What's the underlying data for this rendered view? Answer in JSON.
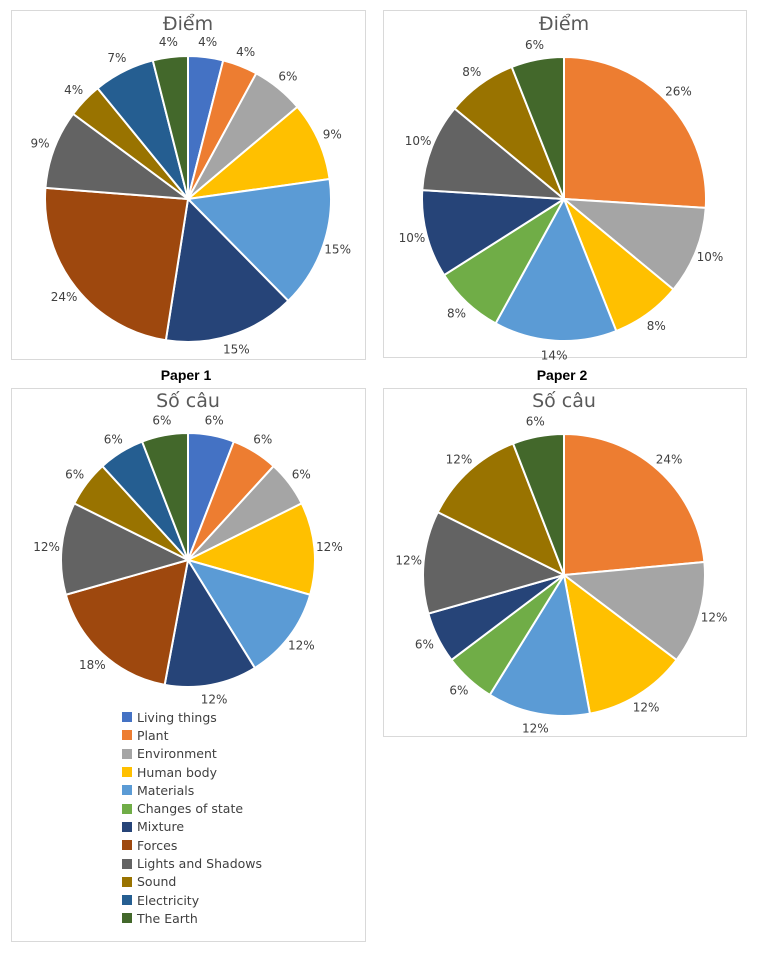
{
  "categories": [
    "Living things",
    "Plant",
    "Environment",
    "Human body",
    "Materials",
    "Changes of state",
    "Mixture",
    "Forces",
    "Lights and Shadows",
    "Sound",
    "Electricity",
    "The Earth"
  ],
  "colors": [
    "#4472C4",
    "#ED7D31",
    "#A5A5A5",
    "#FFC000",
    "#5B9BD5",
    "#70AD47",
    "#264478",
    "#9E480E",
    "#636363",
    "#997300",
    "#255E91",
    "#43682B"
  ],
  "paper_labels": [
    "Paper 1",
    "Paper 2"
  ],
  "chart_data": [
    {
      "type": "pie",
      "title": "Điểm",
      "paper": "Paper 1",
      "values": [
        4,
        4,
        6,
        9,
        15,
        0,
        15,
        24,
        9,
        4,
        7,
        4
      ]
    },
    {
      "type": "pie",
      "title": "Điểm",
      "paper": "Paper 2",
      "values": [
        0,
        26,
        10,
        8,
        14,
        8,
        10,
        0,
        10,
        8,
        0,
        6
      ]
    },
    {
      "type": "pie",
      "title": "Số câu",
      "paper": "Paper 1",
      "values": [
        6,
        6,
        6,
        12,
        12,
        0,
        12,
        18,
        12,
        6,
        6,
        6
      ]
    },
    {
      "type": "pie",
      "title": "Số câu",
      "paper": "Paper 2",
      "values": [
        0,
        24,
        12,
        12,
        12,
        6,
        6,
        0,
        12,
        12,
        0,
        6
      ]
    }
  ]
}
